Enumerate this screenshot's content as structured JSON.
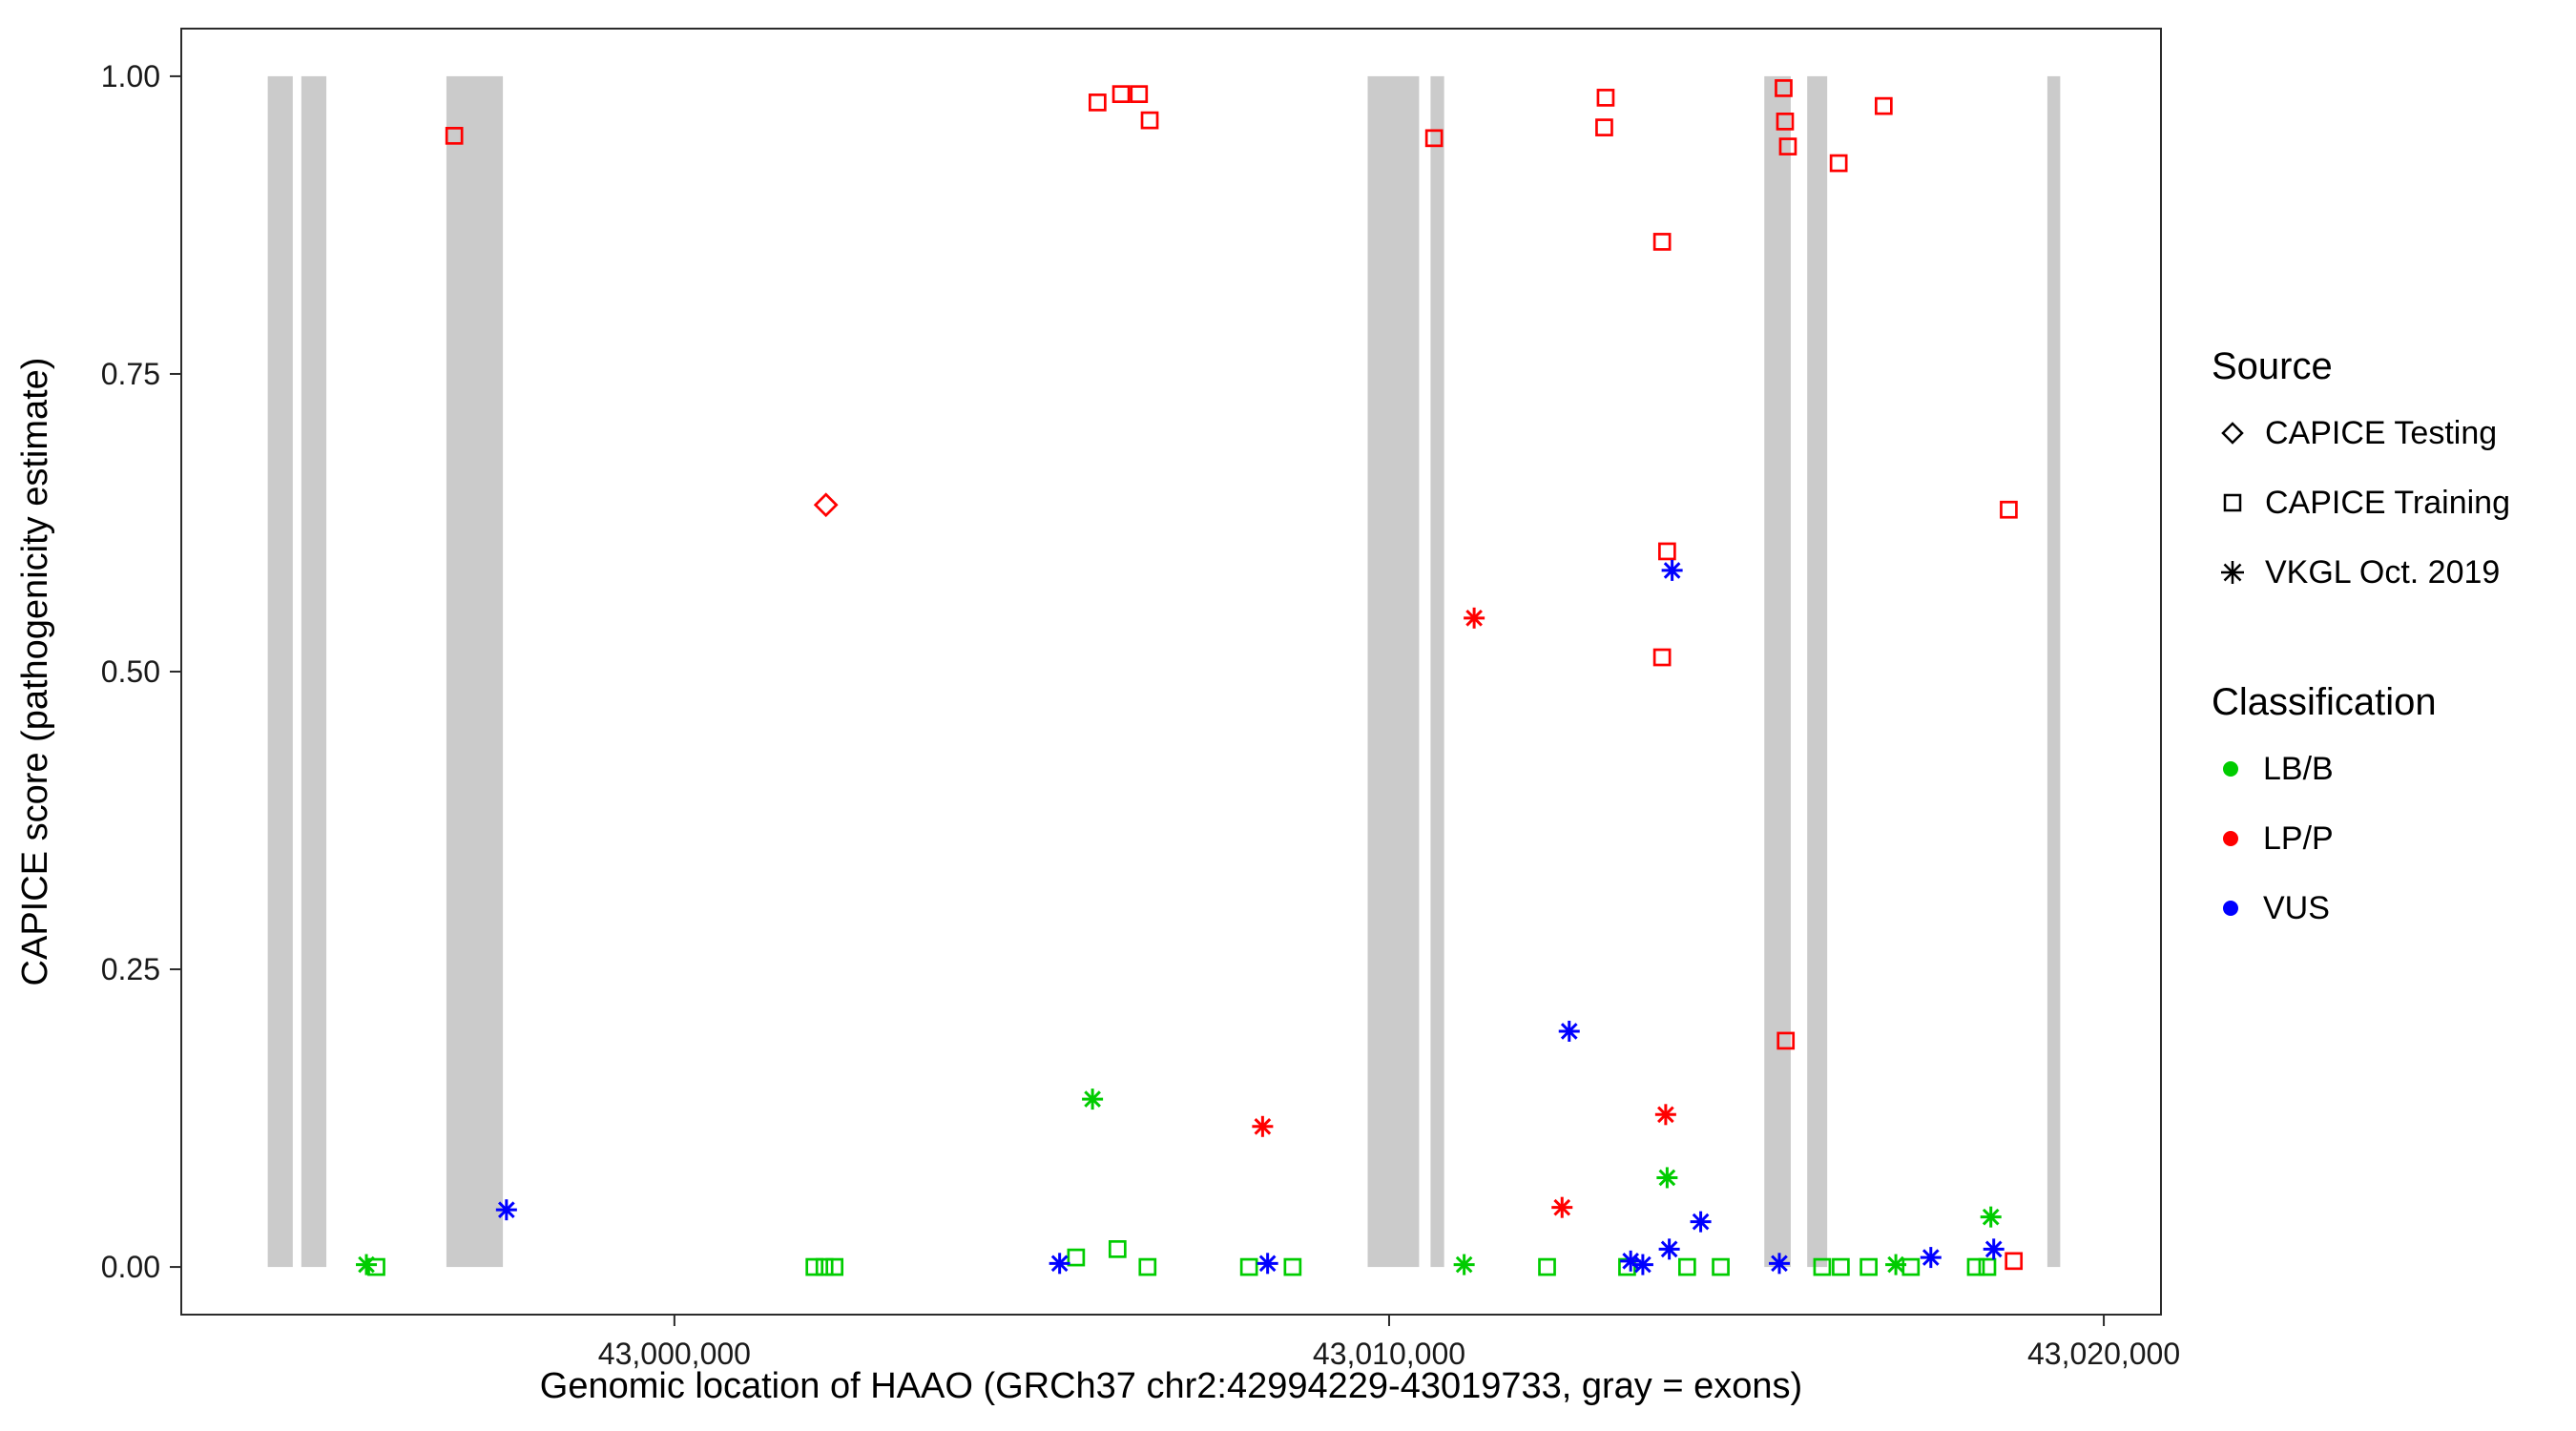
{
  "chart_data": {
    "type": "scatter",
    "title": "",
    "xlabel": "Genomic location of HAAO (GRCh37 chr2:42994229-43019733, gray = exons)",
    "ylabel": "CAPICE score (pathogenicity estimate)",
    "xlim": [
      42993100,
      43020800
    ],
    "ylim": [
      -0.04,
      1.04
    ],
    "grid": "off",
    "legend_position": "right",
    "x_ticks": [
      {
        "value": 43000000,
        "label": "43,000,000"
      },
      {
        "value": 43010000,
        "label": "43,010,000"
      },
      {
        "value": 43020000,
        "label": "43,020,000"
      }
    ],
    "y_ticks": [
      {
        "value": 0.0,
        "label": "0.00"
      },
      {
        "value": 0.25,
        "label": "0.25"
      },
      {
        "value": 0.5,
        "label": "0.50"
      },
      {
        "value": 0.75,
        "label": "0.75"
      },
      {
        "value": 1.0,
        "label": "1.00"
      }
    ],
    "exon_color": "#CBCBCB",
    "exons": [
      [
        42994310,
        42994660
      ],
      [
        42994780,
        42995130
      ],
      [
        42996810,
        42997600
      ],
      [
        43009700,
        43010420
      ],
      [
        43010580,
        43010770
      ],
      [
        43015250,
        43015620
      ],
      [
        43015850,
        43016130
      ],
      [
        43019210,
        43019390
      ]
    ],
    "series": [
      {
        "name": "CAPICE Testing / LP-P",
        "source": "CAPICE Testing",
        "classification": "LP/P",
        "shape": "diamond",
        "color": "#FF0000",
        "points": [
          [
            43002120,
            0.64
          ]
        ]
      },
      {
        "name": "CAPICE Training / LP-P",
        "source": "CAPICE Training",
        "classification": "LP/P",
        "shape": "square",
        "color": "#FF0000",
        "points": [
          [
            42996920,
            0.95
          ],
          [
            43005920,
            0.978
          ],
          [
            43006250,
            0.985
          ],
          [
            43006500,
            0.985
          ],
          [
            43006650,
            0.963
          ],
          [
            43010630,
            0.948
          ],
          [
            43013010,
            0.957
          ],
          [
            43013030,
            0.982
          ],
          [
            43013820,
            0.861
          ],
          [
            43013890,
            0.601
          ],
          [
            43013820,
            0.512
          ],
          [
            43015520,
            0.99
          ],
          [
            43015540,
            0.962
          ],
          [
            43015580,
            0.941
          ],
          [
            43015550,
            0.19
          ],
          [
            43016290,
            0.927
          ],
          [
            43016920,
            0.975
          ],
          [
            43018670,
            0.636
          ],
          [
            43018740,
            0.005
          ]
        ]
      },
      {
        "name": "CAPICE Training / LB-B",
        "source": "CAPICE Training",
        "classification": "LB/B",
        "shape": "square",
        "color": "#00CC00",
        "points": [
          [
            42995830,
            0.0
          ],
          [
            43001960,
            0.0
          ],
          [
            43002100,
            0.0
          ],
          [
            43002240,
            0.0
          ],
          [
            43005620,
            0.008
          ],
          [
            43006200,
            0.015
          ],
          [
            43006620,
            0.0
          ],
          [
            43008040,
            0.0
          ],
          [
            43008650,
            0.0
          ],
          [
            43012210,
            0.0
          ],
          [
            43013330,
            0.0
          ],
          [
            43014170,
            0.0
          ],
          [
            43014640,
            0.0
          ],
          [
            43016060,
            0.0
          ],
          [
            43016320,
            0.0
          ],
          [
            43016710,
            0.0
          ],
          [
            43017300,
            0.0
          ],
          [
            43018210,
            0.0
          ],
          [
            43018370,
            0.0
          ]
        ]
      },
      {
        "name": "VKGL Oct. 2019 / LB-B",
        "source": "VKGL Oct. 2019",
        "classification": "LB/B",
        "shape": "asterisk",
        "color": "#00CC00",
        "points": [
          [
            42995690,
            0.002
          ],
          [
            43005850,
            0.141
          ],
          [
            43011050,
            0.002
          ],
          [
            43013890,
            0.075
          ],
          [
            43017090,
            0.002
          ],
          [
            43018420,
            0.042
          ]
        ]
      },
      {
        "name": "VKGL Oct. 2019 / LP-P",
        "source": "VKGL Oct. 2019",
        "classification": "LP/P",
        "shape": "asterisk",
        "color": "#FF0000",
        "points": [
          [
            43008230,
            0.118
          ],
          [
            43011190,
            0.545
          ],
          [
            43012420,
            0.05
          ],
          [
            43013870,
            0.128
          ]
        ]
      },
      {
        "name": "VKGL Oct. 2019 / VUS",
        "source": "VKGL Oct. 2019",
        "classification": "VUS",
        "shape": "asterisk",
        "color": "#0000FF",
        "points": [
          [
            42997650,
            0.048
          ],
          [
            43005390,
            0.003
          ],
          [
            43008300,
            0.003
          ],
          [
            43012520,
            0.198
          ],
          [
            43013380,
            0.005
          ],
          [
            43013550,
            0.002
          ],
          [
            43013920,
            0.015
          ],
          [
            43013960,
            0.585
          ],
          [
            43014360,
            0.038
          ],
          [
            43015460,
            0.003
          ],
          [
            43017580,
            0.008
          ],
          [
            43018460,
            0.015
          ]
        ]
      }
    ],
    "legend": {
      "source_title": "Source",
      "source_items": [
        {
          "label": "CAPICE Testing",
          "shape": "diamond"
        },
        {
          "label": "CAPICE Training",
          "shape": "square"
        },
        {
          "label": "VKGL Oct. 2019",
          "shape": "asterisk"
        }
      ],
      "class_title": "Classification",
      "class_items": [
        {
          "label": "LB/B",
          "color": "#00CC00"
        },
        {
          "label": "LP/P",
          "color": "#FF0000"
        },
        {
          "label": "VUS",
          "color": "#0000FF"
        }
      ]
    }
  }
}
